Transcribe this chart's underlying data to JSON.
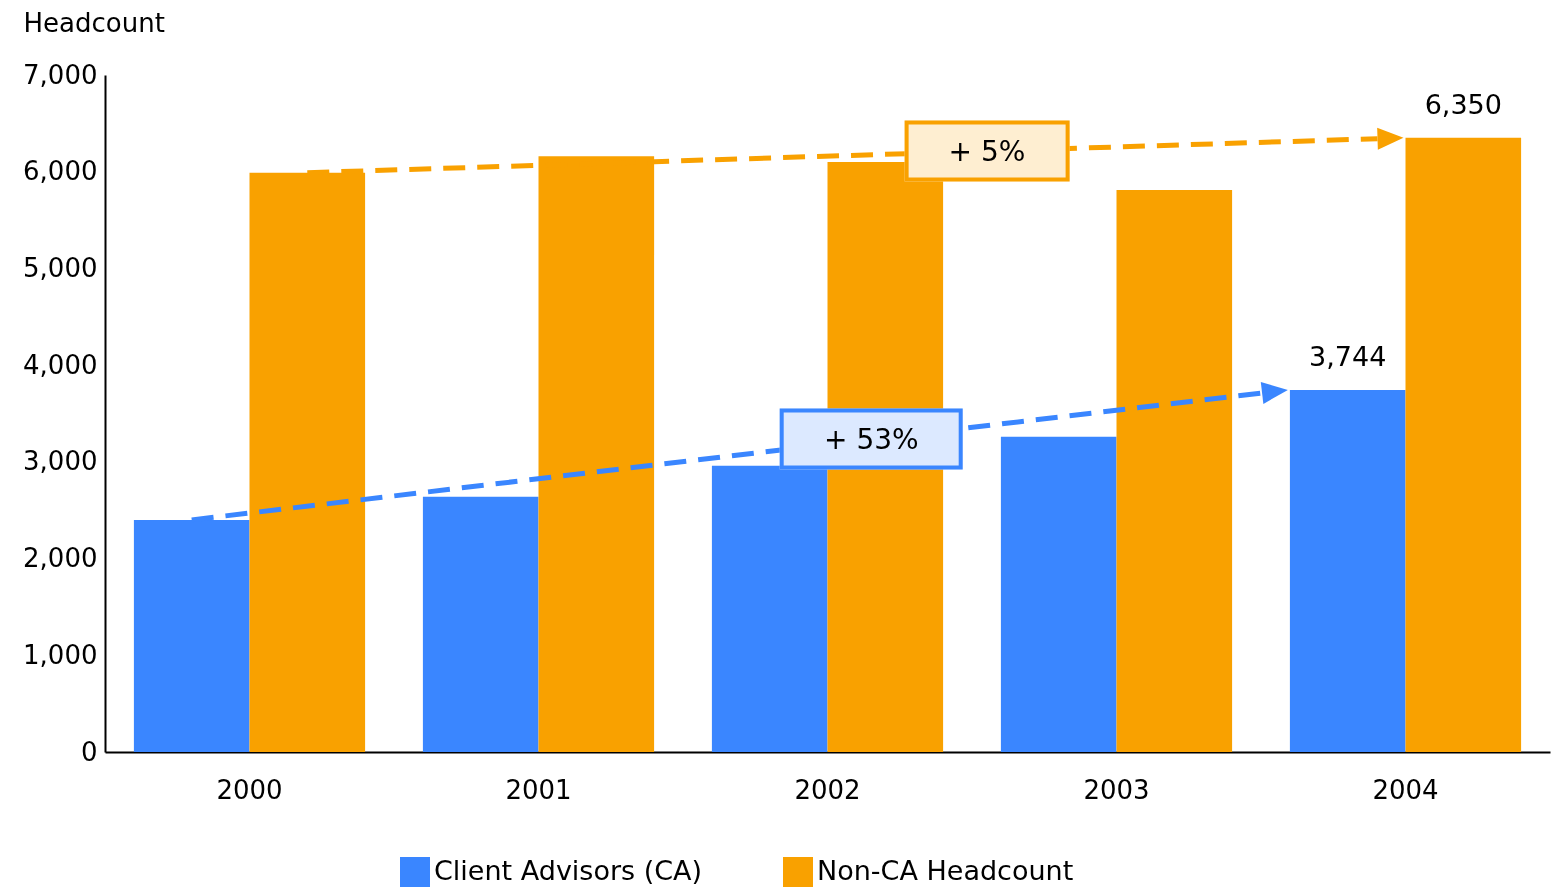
{
  "chart_data": {
    "type": "bar",
    "ylabel": "Headcount",
    "categories": [
      "2000",
      "2001",
      "2002",
      "2003",
      "2004"
    ],
    "series": [
      {
        "name": "Client Advisors (CA)",
        "color": "#3a86ff",
        "values": [
          2400,
          2640,
          2960,
          3260,
          3744
        ],
        "value_labels": [
          null,
          null,
          null,
          null,
          "3,744"
        ]
      },
      {
        "name": "Non-CA Headcount",
        "color": "#f9a100",
        "values": [
          5990,
          6160,
          6100,
          5810,
          6350
        ],
        "value_labels": [
          null,
          null,
          null,
          null,
          "6,350"
        ]
      }
    ],
    "annotations": [
      "+ 53%",
      "+ 5%"
    ],
    "ylim": [
      0,
      7000
    ],
    "yticks": [
      {
        "value": 0,
        "label": "0"
      },
      {
        "value": 1000,
        "label": "1,000"
      },
      {
        "value": 2000,
        "label": "2,000"
      },
      {
        "value": 3000,
        "label": "3,000"
      },
      {
        "value": 4000,
        "label": "4,000"
      },
      {
        "value": 5000,
        "label": "5,000"
      },
      {
        "value": 6000,
        "label": "6,000"
      },
      {
        "value": 7000,
        "label": "7,000"
      }
    ],
    "grid": false,
    "legend": "bottom"
  }
}
